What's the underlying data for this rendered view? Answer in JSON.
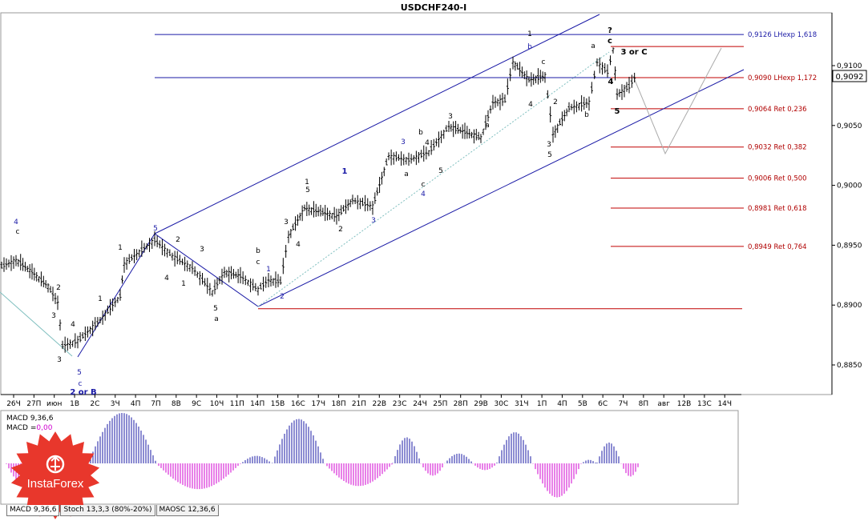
{
  "chart_data": {
    "type": "candlestick",
    "title": "USDCHF240-I",
    "price_axis": {
      "ylim": [
        0.8825,
        0.9135
      ],
      "ticks": [
        "0,9100",
        "0,9050",
        "0,9000",
        "0,8950",
        "0,8900",
        "0,8850"
      ],
      "last_price": "0,9092"
    },
    "time_axis_labels": [
      "26Ч",
      "27П",
      "июн",
      "1В",
      "2С",
      "3Ч",
      "4П",
      "7П",
      "8В",
      "9С",
      "10Ч",
      "11П",
      "14П",
      "15В",
      "16С",
      "17Ч",
      "18П",
      "21П",
      "22В",
      "23С",
      "24Ч",
      "25П",
      "28П",
      "29В",
      "30С",
      "31Ч",
      "1П",
      "4П",
      "5В",
      "6С",
      "7Ч",
      "8П",
      "авг",
      "12В",
      "13С",
      "14Ч"
    ],
    "levels": [
      {
        "price": 0.9126,
        "label": "0,9126 LHexp 1,618",
        "color": "#1a1aa6"
      },
      {
        "price": 0.909,
        "label": "0,9090 LHexp 1,172",
        "color": "#b00000"
      },
      {
        "price": 0.9064,
        "label": "0,9064 Ret 0,236",
        "color": "#b00000"
      },
      {
        "price": 0.9032,
        "label": "0,9032 Ret 0,382",
        "color": "#b00000"
      },
      {
        "price": 0.9006,
        "label": "0,9006 Ret 0,500",
        "color": "#b00000"
      },
      {
        "price": 0.8981,
        "label": "0,8981 Ret 0,618",
        "color": "#b00000"
      },
      {
        "price": 0.8949,
        "label": "0,8949 Ret 0,764",
        "color": "#b00000"
      }
    ],
    "wave_labels": [
      "4",
      "c",
      "2",
      "3",
      "1",
      "4",
      "3",
      "2 or B",
      "c",
      "5",
      "1",
      "5",
      "2",
      "4",
      "1",
      "3",
      "5",
      "a",
      "c",
      "b",
      "1",
      "2",
      "1",
      "3",
      "4",
      "5",
      "1",
      "2",
      "3",
      "a",
      "b",
      "c",
      "4",
      "3",
      "4",
      "5",
      "3",
      "a",
      "b",
      "1",
      "4",
      "c",
      "2",
      "3",
      "5",
      "b",
      "a",
      "c",
      "?",
      "4",
      "3 or C",
      "5"
    ],
    "macd": {
      "label1": "MACD 9,36,6",
      "label2a": "MACD =",
      "label2b": "0,00"
    }
  },
  "tabs": [
    "MACD 9,36,6",
    "Stoch 13,3,3 (80%-20%)",
    "MAOSC 12,36,6"
  ],
  "logo_text": "InstaForex",
  "colors": {
    "wave_blue": "#1a1aa6",
    "level_red": "#c00000",
    "macd_pos": "#1a1aa6",
    "macd_neg": "#d000d0",
    "logo": "#e8372c"
  }
}
